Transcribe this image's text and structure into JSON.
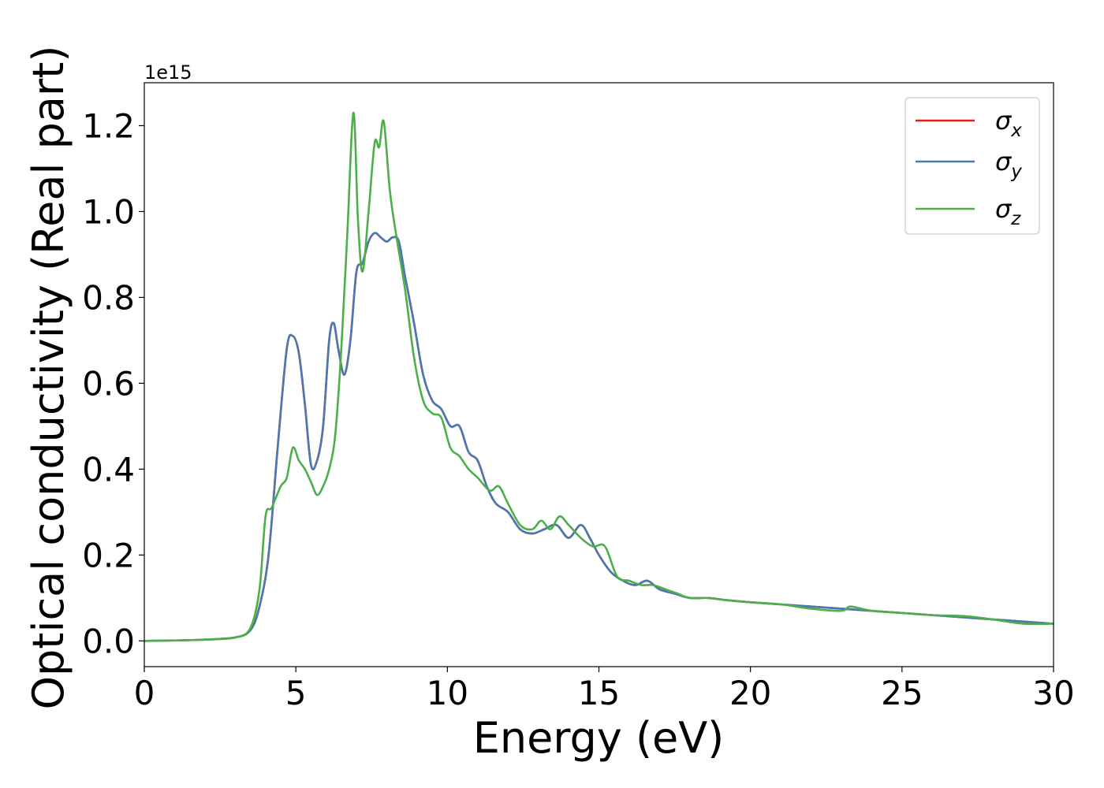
{
  "chart_data": {
    "type": "line",
    "xlabel": "Energy (eV)",
    "ylabel": "Optical conductivity (Real part)",
    "y_offset_label": "1e15",
    "xlim": [
      0,
      30
    ],
    "ylim": [
      -0.06,
      1.3
    ],
    "x_ticks": [
      0,
      5,
      10,
      15,
      20,
      25,
      30
    ],
    "x_tick_labels": [
      "0",
      "5",
      "10",
      "15",
      "20",
      "25",
      "30"
    ],
    "y_ticks": [
      0.0,
      0.2,
      0.4,
      0.6,
      0.8,
      1.0,
      1.2
    ],
    "y_tick_labels": [
      "0.0",
      "0.2",
      "0.4",
      "0.6",
      "0.8",
      "1.0",
      "1.2"
    ],
    "grid": false,
    "legend_position": "top-right",
    "series": [
      {
        "name": "σx",
        "legend_base": "σ",
        "legend_sub": "x",
        "color": "#e41a1c",
        "x": [
          0,
          1,
          2,
          3,
          3.5,
          3.8,
          4.1,
          4.4,
          4.7,
          4.9,
          5.1,
          5.3,
          5.5,
          5.7,
          5.9,
          6.1,
          6.25,
          6.4,
          6.6,
          6.8,
          7.0,
          7.2,
          7.4,
          7.6,
          7.8,
          8.0,
          8.2,
          8.4,
          8.6,
          8.9,
          9.2,
          9.5,
          9.8,
          10.1,
          10.4,
          10.7,
          11.0,
          11.3,
          11.6,
          12.0,
          12.4,
          12.8,
          13.2,
          13.6,
          14.0,
          14.4,
          14.7,
          15.0,
          15.4,
          15.8,
          16.2,
          16.6,
          17.0,
          17.5,
          18.0,
          18.6,
          19.2,
          20.0,
          21.0,
          22.0,
          23.0,
          24.0,
          25.0,
          26.0,
          27.0,
          28.0,
          29.0,
          30.0
        ],
        "values": [
          0.0,
          0.001,
          0.003,
          0.008,
          0.025,
          0.08,
          0.2,
          0.45,
          0.68,
          0.71,
          0.67,
          0.55,
          0.41,
          0.42,
          0.5,
          0.7,
          0.74,
          0.68,
          0.62,
          0.7,
          0.86,
          0.88,
          0.93,
          0.95,
          0.94,
          0.93,
          0.94,
          0.93,
          0.85,
          0.74,
          0.62,
          0.56,
          0.54,
          0.5,
          0.5,
          0.44,
          0.42,
          0.36,
          0.32,
          0.3,
          0.26,
          0.25,
          0.26,
          0.27,
          0.24,
          0.27,
          0.24,
          0.2,
          0.16,
          0.14,
          0.13,
          0.14,
          0.12,
          0.11,
          0.1,
          0.1,
          0.095,
          0.09,
          0.085,
          0.08,
          0.075,
          0.07,
          0.065,
          0.06,
          0.055,
          0.05,
          0.045,
          0.04
        ]
      },
      {
        "name": "σy",
        "legend_base": "σ",
        "legend_sub": "y",
        "color": "#4a78b0",
        "x": [
          0,
          1,
          2,
          3,
          3.5,
          3.8,
          4.1,
          4.4,
          4.7,
          4.9,
          5.1,
          5.3,
          5.5,
          5.7,
          5.9,
          6.1,
          6.25,
          6.4,
          6.6,
          6.8,
          7.0,
          7.2,
          7.4,
          7.6,
          7.8,
          8.0,
          8.2,
          8.4,
          8.6,
          8.9,
          9.2,
          9.5,
          9.8,
          10.1,
          10.4,
          10.7,
          11.0,
          11.3,
          11.6,
          12.0,
          12.4,
          12.8,
          13.2,
          13.6,
          14.0,
          14.4,
          14.7,
          15.0,
          15.4,
          15.8,
          16.2,
          16.6,
          17.0,
          17.5,
          18.0,
          18.6,
          19.2,
          20.0,
          21.0,
          22.0,
          23.0,
          24.0,
          25.0,
          26.0,
          27.0,
          28.0,
          29.0,
          30.0
        ],
        "values": [
          0.0,
          0.001,
          0.003,
          0.008,
          0.025,
          0.08,
          0.2,
          0.45,
          0.68,
          0.71,
          0.67,
          0.55,
          0.41,
          0.42,
          0.5,
          0.7,
          0.74,
          0.68,
          0.62,
          0.7,
          0.86,
          0.88,
          0.93,
          0.95,
          0.94,
          0.93,
          0.94,
          0.93,
          0.85,
          0.74,
          0.62,
          0.56,
          0.54,
          0.5,
          0.5,
          0.44,
          0.42,
          0.36,
          0.32,
          0.3,
          0.26,
          0.25,
          0.26,
          0.27,
          0.24,
          0.27,
          0.24,
          0.2,
          0.16,
          0.14,
          0.13,
          0.14,
          0.12,
          0.11,
          0.1,
          0.1,
          0.095,
          0.09,
          0.085,
          0.08,
          0.075,
          0.07,
          0.065,
          0.06,
          0.055,
          0.05,
          0.045,
          0.04
        ]
      },
      {
        "name": "σz",
        "legend_base": "σ",
        "legend_sub": "z",
        "color": "#4daf4a",
        "x": [
          0,
          1,
          2,
          3,
          3.5,
          3.8,
          4.0,
          4.2,
          4.5,
          4.7,
          4.9,
          5.1,
          5.3,
          5.5,
          5.7,
          5.9,
          6.1,
          6.3,
          6.5,
          6.7,
          6.9,
          7.05,
          7.2,
          7.4,
          7.6,
          7.75,
          7.9,
          8.1,
          8.3,
          8.6,
          8.9,
          9.2,
          9.5,
          9.8,
          10.1,
          10.4,
          10.7,
          11.0,
          11.4,
          11.7,
          12.0,
          12.4,
          12.8,
          13.1,
          13.4,
          13.7,
          14.0,
          14.4,
          14.8,
          15.2,
          15.6,
          16.0,
          16.4,
          16.8,
          17.2,
          17.6,
          18.0,
          18.6,
          19.2,
          20.0,
          21.0,
          22.0,
          23.0,
          23.3,
          24.0,
          25.0,
          26.0,
          27.0,
          28.0,
          29.0,
          30.0
        ],
        "values": [
          0.0,
          0.001,
          0.003,
          0.008,
          0.03,
          0.12,
          0.29,
          0.31,
          0.36,
          0.38,
          0.45,
          0.42,
          0.4,
          0.37,
          0.34,
          0.36,
          0.4,
          0.48,
          0.68,
          0.95,
          1.23,
          0.98,
          0.86,
          1.0,
          1.16,
          1.15,
          1.21,
          1.05,
          0.95,
          0.82,
          0.66,
          0.56,
          0.53,
          0.52,
          0.45,
          0.43,
          0.4,
          0.38,
          0.35,
          0.36,
          0.32,
          0.27,
          0.26,
          0.28,
          0.26,
          0.29,
          0.27,
          0.24,
          0.22,
          0.22,
          0.15,
          0.14,
          0.13,
          0.13,
          0.12,
          0.11,
          0.1,
          0.1,
          0.095,
          0.09,
          0.085,
          0.075,
          0.07,
          0.08,
          0.07,
          0.065,
          0.06,
          0.058,
          0.05,
          0.04,
          0.04
        ]
      }
    ]
  }
}
